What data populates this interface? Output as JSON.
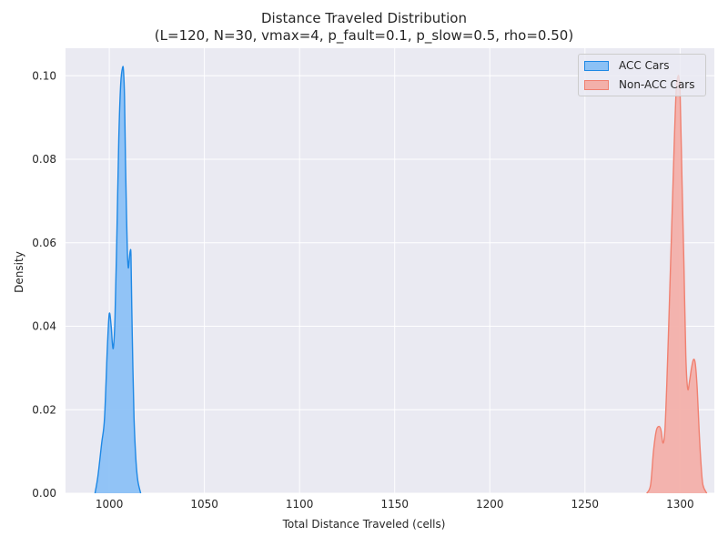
{
  "chart_data": {
    "type": "area",
    "title_lines": [
      "Distance Traveled Distribution",
      "(L=120, N=30, vmax=4, p_fault=0.1, p_slow=0.5, rho=0.50)"
    ],
    "xlabel": "Total Distance Traveled (cells)",
    "ylabel": "Density",
    "xlim": [
      977,
      1318
    ],
    "ylim": [
      0,
      0.1066
    ],
    "x_ticks": [
      1000,
      1050,
      1100,
      1150,
      1200,
      1250,
      1300
    ],
    "x_tick_labels": [
      "1000",
      "1050",
      "1100",
      "1150",
      "1200",
      "1250",
      "1300"
    ],
    "y_ticks": [
      0,
      0.02,
      0.04,
      0.06,
      0.08,
      0.1
    ],
    "y_tick_labels": [
      "0.00",
      "0.02",
      "0.04",
      "0.06",
      "0.08",
      "0.10"
    ],
    "grid": true,
    "legend_position": "top-right",
    "background": "#eaeaf2",
    "series": [
      {
        "name": "ACC Cars",
        "color": "#1e88e5",
        "fill": "#8cc1f5",
        "x": [
          992.5,
          994,
          996,
          997.5,
          999,
          1000,
          1001,
          1001.6,
          1002.2,
          1003,
          1004,
          1005,
          1006,
          1007,
          1007.5,
          1008,
          1008.5,
          1009,
          1009.5,
          1010,
          1010.5,
          1011,
          1011.4,
          1011.8,
          1012.4,
          1013,
          1014,
          1015,
          1016.5
        ],
        "y": [
          0,
          0.004,
          0.012,
          0.018,
          0.035,
          0.043,
          0.04,
          0.036,
          0.035,
          0.042,
          0.062,
          0.085,
          0.098,
          0.102,
          0.101,
          0.095,
          0.08,
          0.068,
          0.058,
          0.054,
          0.056,
          0.058,
          0.057,
          0.045,
          0.03,
          0.018,
          0.008,
          0.003,
          0
        ]
      },
      {
        "name": "Non-ACC Cars",
        "color": "#f08070",
        "fill": "#f3b0aa",
        "x": [
          1282.5,
          1284.5,
          1286,
          1287.5,
          1289,
          1290,
          1291,
          1292,
          1293,
          1294,
          1295,
          1296,
          1297,
          1298,
          1299,
          1299.5,
          1300,
          1301,
          1302,
          1303,
          1304,
          1305,
          1306,
          1307,
          1308,
          1309,
          1310,
          1311,
          1312,
          1314
        ],
        "y": [
          0,
          0.002,
          0.01,
          0.015,
          0.016,
          0.015,
          0.012,
          0.015,
          0.026,
          0.04,
          0.055,
          0.07,
          0.085,
          0.097,
          0.1,
          0.099,
          0.096,
          0.075,
          0.055,
          0.033,
          0.025,
          0.027,
          0.03,
          0.032,
          0.031,
          0.025,
          0.015,
          0.007,
          0.002,
          0
        ]
      }
    ]
  }
}
